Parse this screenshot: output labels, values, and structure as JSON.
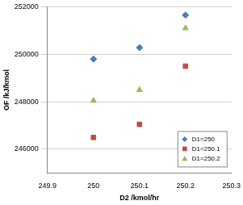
{
  "chart_data": {
    "type": "scatter",
    "x_label": "D2 /kmol/hr",
    "y_label": "OF /kJ/kmol",
    "xlim": [
      249.9,
      250.3
    ],
    "xticks": [
      249.9,
      250,
      250.1,
      250.2,
      250.3
    ],
    "ylim": [
      245000,
      252000
    ],
    "yticks": [
      246000,
      248000,
      250000,
      252000
    ],
    "grid": true,
    "legend": "lower right",
    "series": [
      {
        "name": "D1=250",
        "color": "#4a7ebb",
        "marker": "diamond",
        "x": [
          250,
          250.1,
          250.2
        ],
        "values": [
          249800,
          250280,
          251650
        ]
      },
      {
        "name": "D1=250.1",
        "color": "#be4b48",
        "marker": "square",
        "x": [
          250,
          250.1,
          250.2
        ],
        "values": [
          246500,
          247050,
          249500
        ]
      },
      {
        "name": "D1=250.2",
        "color": "#98b954",
        "marker": "triangle",
        "x": [
          250,
          250.1,
          250.2
        ],
        "values": [
          248050,
          248500,
          251100
        ]
      }
    ]
  }
}
